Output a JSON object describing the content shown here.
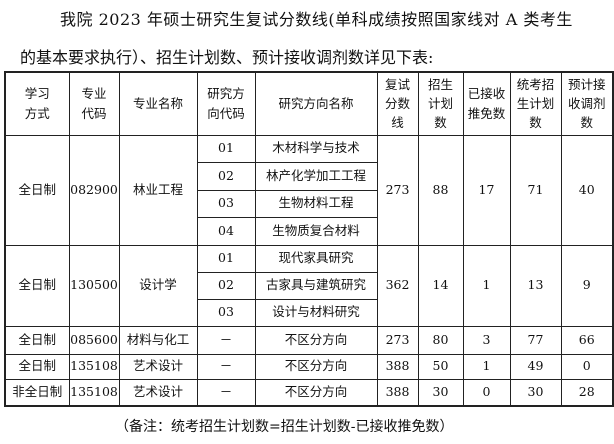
{
  "intro": {
    "line1": "我院 2023 年硕士研究生复试分数线(单科成绩按照国家线对 A 类考生",
    "line2": "的基本要求执行）、招生计划数、预计接收调剂数详见下表:"
  },
  "table": {
    "headers": [
      "学习方式",
      "专业代码",
      "专业名称",
      "研究方向代码",
      "研究方向名称",
      "复试分数线",
      "招生计划数",
      "已接收推免数",
      "统考招生计划数",
      "预计接收调剂数"
    ],
    "groups": [
      {
        "mode": "全日制",
        "code": "082900",
        "major": "林业工程",
        "score": "273",
        "plan": "88",
        "exempt": "17",
        "exam_plan": "71",
        "transfer": "40",
        "directions": [
          {
            "code": "01",
            "name": "木材科学与技术"
          },
          {
            "code": "02",
            "name": "林产化学加工工程"
          },
          {
            "code": "03",
            "name": "生物材料工程"
          },
          {
            "code": "04",
            "name": "生物质复合材料"
          }
        ]
      },
      {
        "mode": "全日制",
        "code": "130500",
        "major": "设计学",
        "score": "362",
        "plan": "14",
        "exempt": "1",
        "exam_plan": "13",
        "transfer": "9",
        "directions": [
          {
            "code": "01",
            "name": "现代家具研究"
          },
          {
            "code": "02",
            "name": "古家具与建筑研究"
          },
          {
            "code": "03",
            "name": "设计与材料研究"
          }
        ]
      },
      {
        "mode": "全日制",
        "code": "085600",
        "major": "材料与化工",
        "score": "273",
        "plan": "80",
        "exempt": "3",
        "exam_plan": "77",
        "transfer": "66",
        "directions": [
          {
            "code": "－",
            "name": "不区分方向"
          }
        ]
      },
      {
        "mode": "全日制",
        "code": "135108",
        "major": "艺术设计",
        "score": "388",
        "plan": "50",
        "exempt": "1",
        "exam_plan": "49",
        "transfer": "0",
        "directions": [
          {
            "code": "－",
            "name": "不区分方向"
          }
        ]
      },
      {
        "mode": "非全日制",
        "code": "135108",
        "major": "艺术设计",
        "score": "388",
        "plan": "30",
        "exempt": "0",
        "exam_plan": "30",
        "transfer": "28",
        "directions": [
          {
            "code": "－",
            "name": "不区分方向"
          }
        ]
      }
    ]
  },
  "note": "（备注：统考招生计划数=招生计划数-已接收推免数）"
}
